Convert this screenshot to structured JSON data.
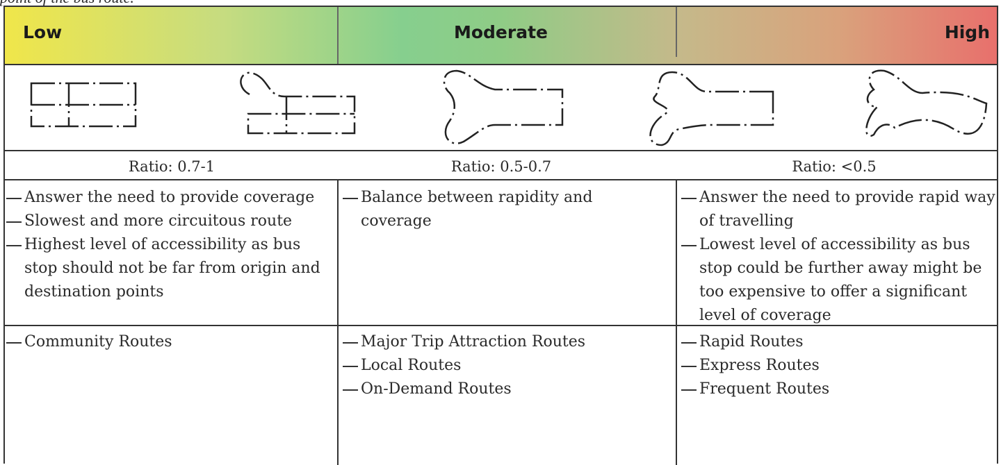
{
  "note": "point of the bus route.",
  "levels": [
    "Low",
    "Moderate",
    "High"
  ],
  "ratios": [
    "Ratio: 0.7-1",
    "Ratio: 0.5-0.7",
    "Ratio: <0.5"
  ],
  "descriptions": [
    [
      "Answer the need to provide coverage",
      "Slowest and more circuitous route",
      "Highest level of accessibility as bus stop should not be far from origin and destination points"
    ],
    [
      "Balance between rapidity and coverage"
    ],
    [
      "Answer the need to provide rapid way of travelling",
      "Lowest level of accessibility as bus stop could be further away might be too expensive to offer a significant level of coverage"
    ]
  ],
  "routes": [
    [
      "Community Routes"
    ],
    [
      "Major Trip Attraction Routes",
      "Local Routes",
      "On-Demand Routes"
    ],
    [
      "Rapid Routes",
      "Express Routes",
      "Frequent Routes"
    ]
  ]
}
